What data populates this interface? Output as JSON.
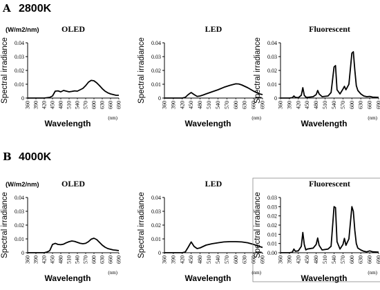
{
  "panels": {
    "A": {
      "letter": "A",
      "temperature": "2800K"
    },
    "B": {
      "letter": "B",
      "temperature": "4000K"
    }
  },
  "chart_data": [
    {
      "type": "line",
      "row": "A",
      "col": 0,
      "title": "OLED",
      "unit_label": "(W/m2/nm)",
      "ylabel": "Spectral irradiance",
      "xlabel": "Wavelength",
      "x_unit": "(nm)",
      "xlim": [
        360,
        690
      ],
      "ylim": [
        0,
        0.04
      ],
      "yticks": [
        "0",
        "0.01",
        "0.02",
        "0.03",
        "0.04"
      ],
      "xticks": [
        "360",
        "390",
        "420",
        "450",
        "480",
        "510",
        "540",
        "570",
        "600",
        "630",
        "660",
        "690"
      ],
      "x": [
        360,
        420,
        440,
        450,
        460,
        470,
        480,
        490,
        500,
        510,
        520,
        530,
        540,
        550,
        560,
        570,
        580,
        590,
        600,
        610,
        620,
        630,
        640,
        650,
        660,
        670,
        680,
        690
      ],
      "y": [
        0,
        0,
        0.0005,
        0.0015,
        0.005,
        0.0052,
        0.0045,
        0.0055,
        0.005,
        0.0045,
        0.0048,
        0.0052,
        0.005,
        0.006,
        0.007,
        0.009,
        0.0115,
        0.0128,
        0.0125,
        0.011,
        0.009,
        0.0068,
        0.005,
        0.0038,
        0.003,
        0.0025,
        0.002,
        0.002
      ]
    },
    {
      "type": "line",
      "row": "A",
      "col": 1,
      "title": "LED",
      "ylabel": "Spectral irradiance",
      "xlabel": "Wavelength",
      "x_unit": "(nm)",
      "xlim": [
        360,
        690
      ],
      "ylim": [
        0,
        0.04
      ],
      "yticks": [
        "0",
        "0.01",
        "0.02",
        "0.03",
        "0.04"
      ],
      "xticks": [
        "360",
        "390",
        "420",
        "450",
        "480",
        "510",
        "540",
        "570",
        "600",
        "630",
        "660",
        "690"
      ],
      "x": [
        360,
        420,
        430,
        440,
        450,
        460,
        470,
        480,
        490,
        500,
        520,
        540,
        560,
        580,
        600,
        610,
        620,
        640,
        660,
        680,
        690
      ],
      "y": [
        0,
        0,
        0.0005,
        0.0025,
        0.004,
        0.0025,
        0.0012,
        0.0015,
        0.0022,
        0.003,
        0.0045,
        0.006,
        0.0078,
        0.0092,
        0.0103,
        0.0102,
        0.0095,
        0.0075,
        0.005,
        0.003,
        0.0025
      ]
    },
    {
      "type": "line",
      "row": "A",
      "col": 2,
      "title": "Fluorescent",
      "ylabel": "Spectral irradiance",
      "xlabel": "Wavelength",
      "x_unit": "(nm)",
      "xlim": [
        360,
        690
      ],
      "ylim": [
        0,
        0.04
      ],
      "yticks": [
        "0",
        "0.01",
        "0.02",
        "0.03",
        "0.04"
      ],
      "xticks": [
        "360",
        "390",
        "420",
        "450",
        "480",
        "510",
        "540",
        "570",
        "600",
        "630",
        "660",
        "690"
      ],
      "x": [
        360,
        390,
        400,
        405,
        410,
        420,
        430,
        435,
        440,
        445,
        450,
        470,
        480,
        485,
        490,
        500,
        520,
        530,
        540,
        545,
        550,
        560,
        570,
        575,
        580,
        590,
        600,
        605,
        610,
        615,
        620,
        630,
        640,
        650,
        660,
        670,
        690
      ],
      "y": [
        0,
        0,
        0.0003,
        0.0015,
        0.0005,
        0.0003,
        0.002,
        0.0075,
        0.002,
        0.0007,
        0.0005,
        0.001,
        0.0025,
        0.0055,
        0.003,
        0.001,
        0.0015,
        0.004,
        0.0225,
        0.0235,
        0.006,
        0.003,
        0.0065,
        0.0085,
        0.006,
        0.01,
        0.0325,
        0.0335,
        0.02,
        0.009,
        0.0055,
        0.003,
        0.0015,
        0.001,
        0.0012,
        0.0007,
        0.0005
      ]
    },
    {
      "type": "line",
      "row": "B",
      "col": 0,
      "title": "OLED",
      "unit_label": "(W/m2/nm)",
      "ylabel": "Spectral irradiance",
      "xlabel": "Wavelength",
      "x_unit": "(nm)",
      "xlim": [
        360,
        690
      ],
      "ylim": [
        0,
        0.04
      ],
      "yticks": [
        "0",
        "0.01",
        "0.02",
        "0.03",
        "0.04"
      ],
      "xticks": [
        "360",
        "390",
        "420",
        "450",
        "480",
        "510",
        "540",
        "570",
        "600",
        "630",
        "660",
        "690"
      ],
      "x": [
        360,
        420,
        430,
        440,
        450,
        460,
        470,
        480,
        490,
        500,
        510,
        520,
        530,
        540,
        550,
        560,
        570,
        580,
        590,
        600,
        610,
        620,
        630,
        640,
        650,
        660,
        670,
        680,
        690
      ],
      "y": [
        0,
        0,
        0.0005,
        0.0015,
        0.006,
        0.0068,
        0.006,
        0.0058,
        0.0062,
        0.0072,
        0.008,
        0.0085,
        0.0082,
        0.0075,
        0.0068,
        0.0065,
        0.0068,
        0.008,
        0.0098,
        0.0105,
        0.0095,
        0.0075,
        0.0055,
        0.004,
        0.003,
        0.0025,
        0.002,
        0.0018,
        0.0015
      ]
    },
    {
      "type": "line",
      "row": "B",
      "col": 1,
      "title": "LED",
      "ylabel": "Spectral irradiance",
      "xlabel": "Wavelength",
      "x_unit": "(nm)",
      "xlim": [
        360,
        690
      ],
      "ylim": [
        0,
        0.04
      ],
      "yticks": [
        "0",
        "0.01",
        "0.02",
        "0.03",
        "0.04"
      ],
      "xticks": [
        "360",
        "390",
        "420",
        "450",
        "480",
        "510",
        "540",
        "570",
        "600",
        "630",
        "660",
        "690"
      ],
      "x": [
        360,
        420,
        430,
        440,
        450,
        460,
        470,
        480,
        490,
        500,
        520,
        540,
        560,
        580,
        600,
        620,
        640,
        660,
        680,
        690
      ],
      "y": [
        0,
        0,
        0.0005,
        0.004,
        0.0078,
        0.0045,
        0.003,
        0.0035,
        0.0045,
        0.0055,
        0.0065,
        0.0072,
        0.0078,
        0.008,
        0.008,
        0.0078,
        0.0072,
        0.006,
        0.0045,
        0.0038
      ]
    },
    {
      "type": "line",
      "row": "B",
      "col": 2,
      "title": "Fluorescent",
      "ylabel": "Spectral irradiance",
      "xlabel": "Wavelength",
      "x_unit": "(nm)",
      "xlim": [
        360,
        690
      ],
      "ylim": [
        0,
        0.03
      ],
      "yticks": [
        "0.00",
        "0.01",
        "0.01",
        "0.02",
        "0.02",
        "0.03",
        "0.03"
      ],
      "xticks": [
        "360",
        "390",
        "420",
        "450",
        "480",
        "510",
        "540",
        "570",
        "600",
        "630",
        "660",
        "690"
      ],
      "x": [
        360,
        390,
        400,
        405,
        410,
        420,
        430,
        435,
        440,
        445,
        450,
        470,
        480,
        485,
        490,
        500,
        520,
        530,
        540,
        545,
        550,
        560,
        570,
        575,
        580,
        590,
        600,
        605,
        610,
        615,
        620,
        630,
        640,
        650,
        660,
        670,
        690
      ],
      "y": [
        0,
        0,
        0.0003,
        0.002,
        0.0008,
        0.001,
        0.0035,
        0.011,
        0.0045,
        0.0015,
        0.002,
        0.0025,
        0.0045,
        0.008,
        0.004,
        0.0015,
        0.002,
        0.0035,
        0.025,
        0.0245,
        0.006,
        0.002,
        0.0045,
        0.0078,
        0.004,
        0.0075,
        0.025,
        0.0225,
        0.012,
        0.005,
        0.0025,
        0.0015,
        0.0008,
        0.0005,
        0.001,
        0.0005,
        0.0003
      ]
    }
  ]
}
